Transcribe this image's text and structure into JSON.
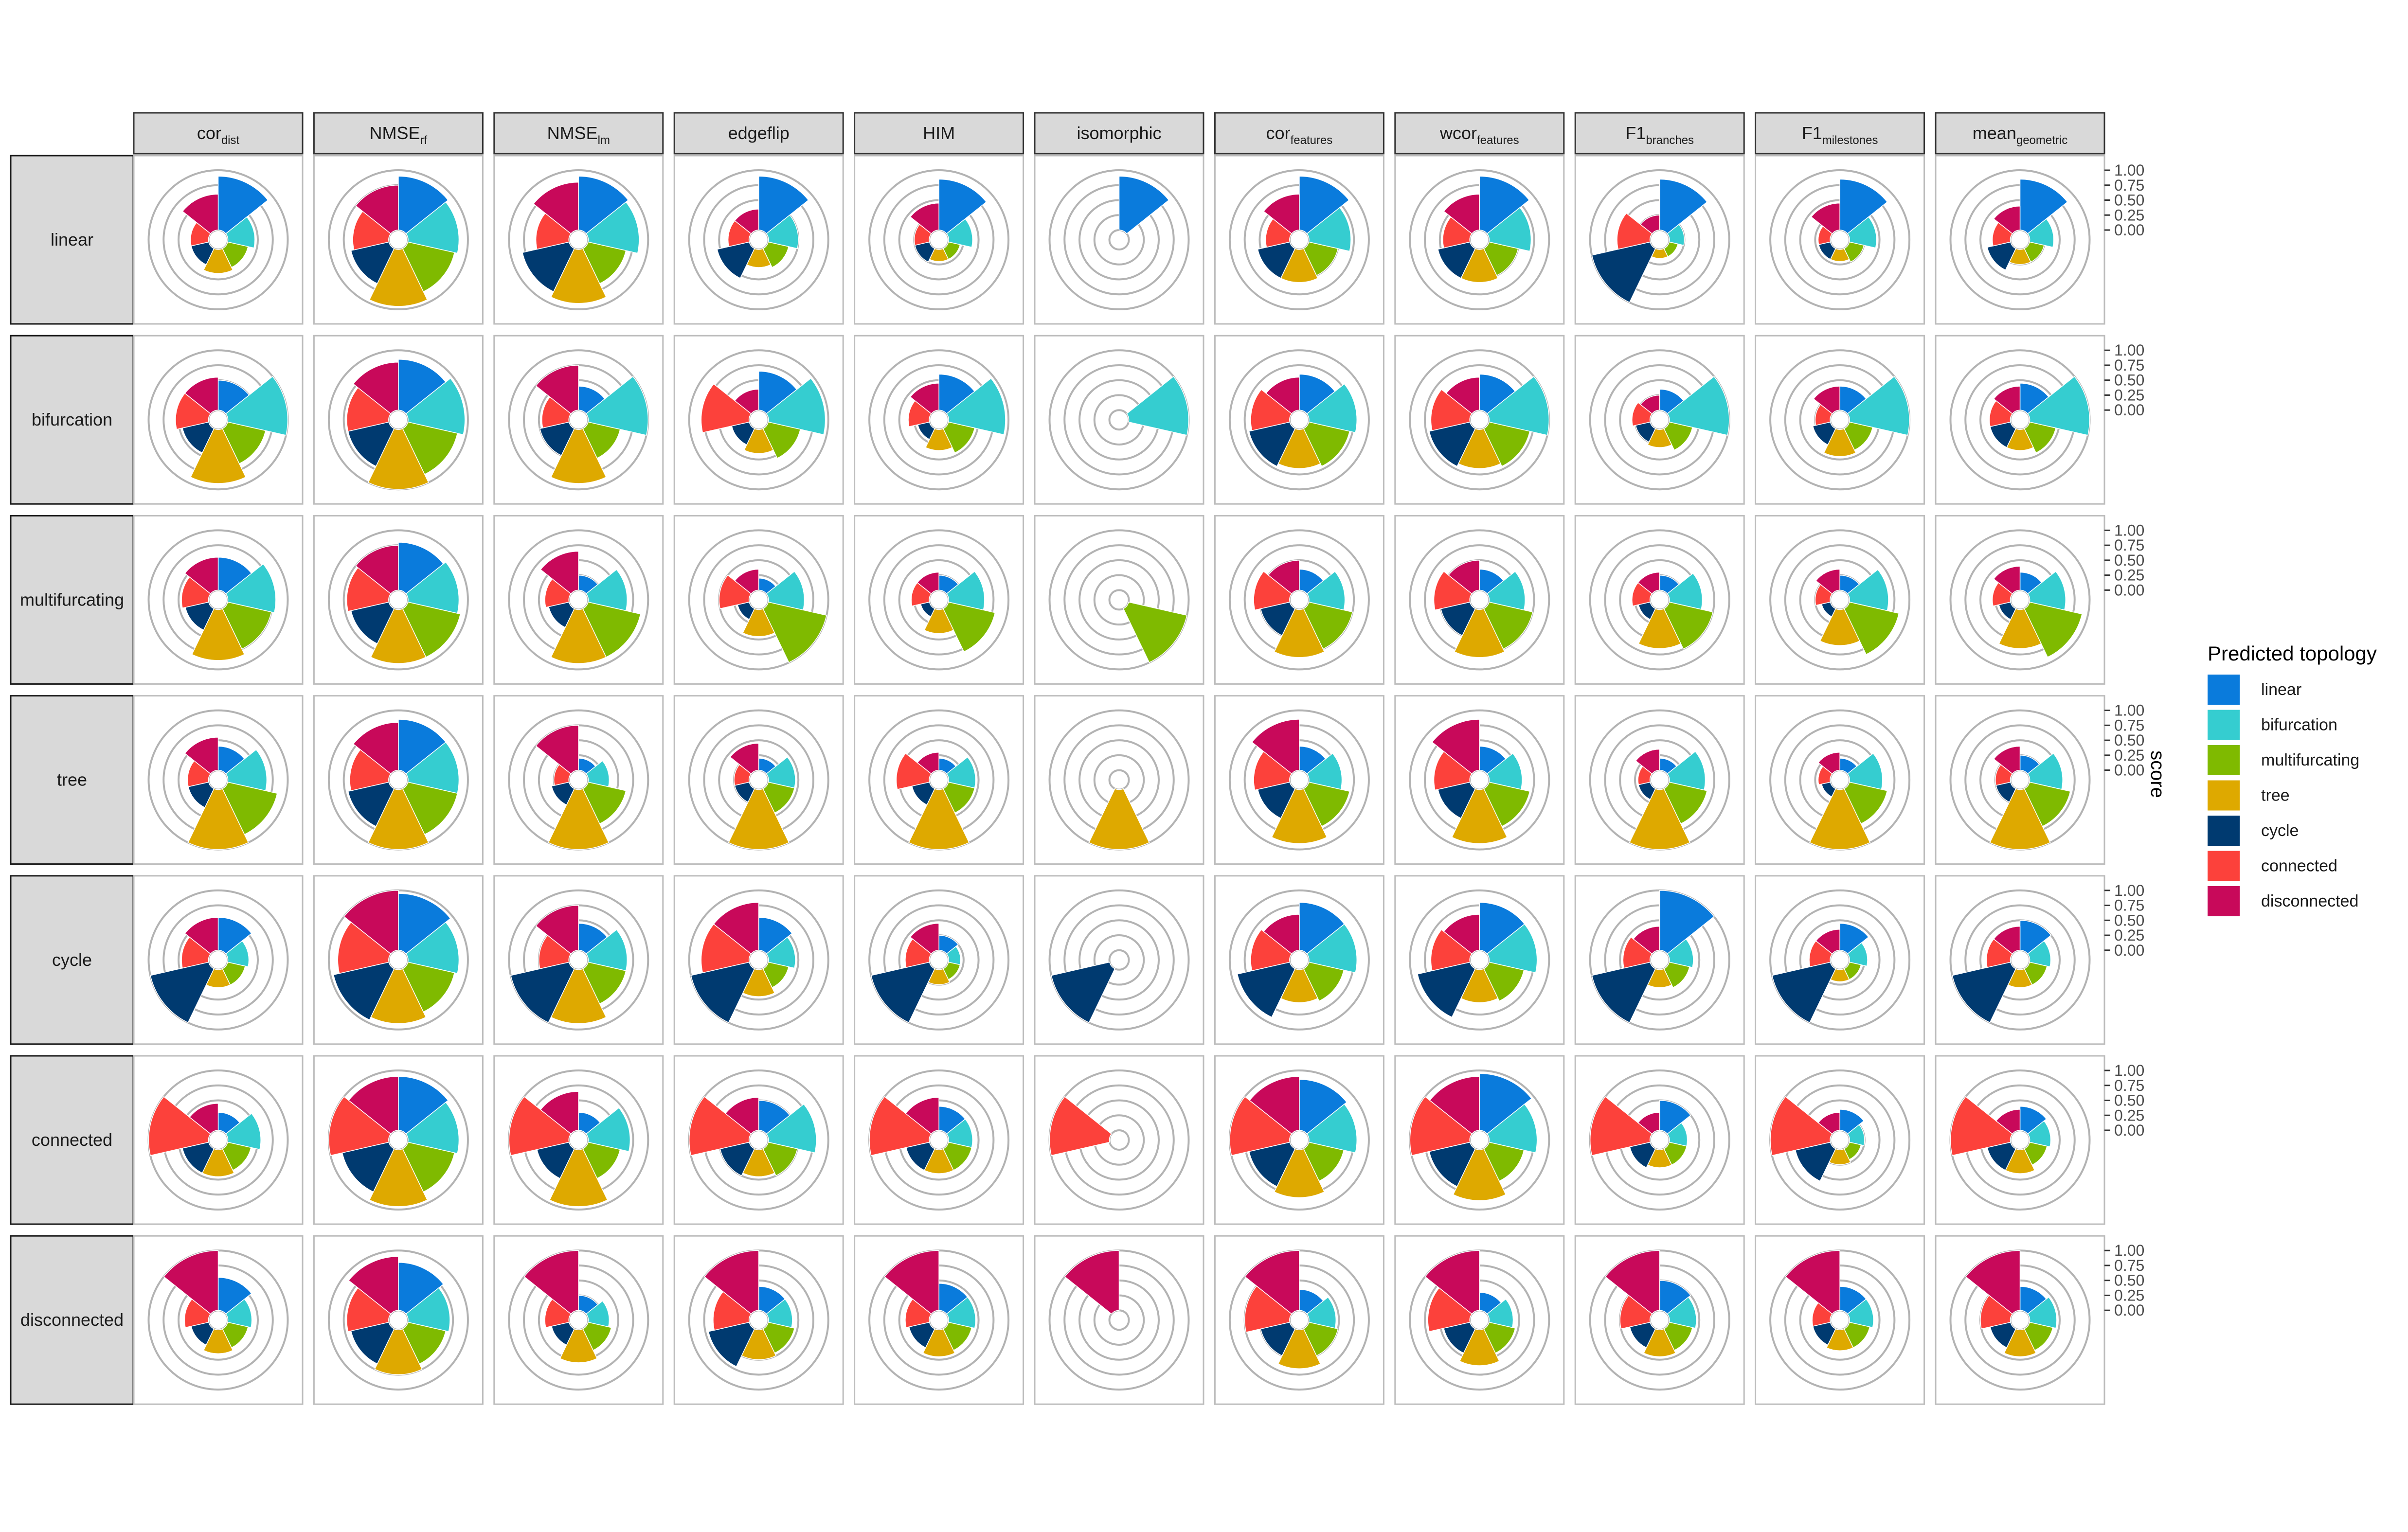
{
  "chart_data": {
    "type": "polar-bar-facet-grid",
    "topologies": [
      "linear",
      "bifurcation",
      "multifurcating",
      "tree",
      "cycle",
      "connected",
      "disconnected"
    ],
    "column_facets": [
      {
        "base": "cor",
        "sub": "dist"
      },
      {
        "base": "NMSE",
        "sub": "rf"
      },
      {
        "base": "NMSE",
        "sub": "lm"
      },
      {
        "base": "edgeflip",
        "sub": ""
      },
      {
        "base": "HIM",
        "sub": ""
      },
      {
        "base": "isomorphic",
        "sub": ""
      },
      {
        "base": "cor",
        "sub": "features"
      },
      {
        "base": "wcor",
        "sub": "features"
      },
      {
        "base": "F1",
        "sub": "branches"
      },
      {
        "base": "F1",
        "sub": "milestones"
      },
      {
        "base": "mean",
        "sub": "geometric"
      }
    ],
    "y_axis": {
      "label": "score",
      "ylim": [
        0,
        1
      ],
      "ticks": [
        "1.00",
        "0.75",
        "0.50",
        "0.25",
        "0.00"
      ]
    },
    "legend": {
      "title": "Predicted topology",
      "position": "right",
      "items": [
        {
          "label": "linear",
          "color": "#0a7bdc"
        },
        {
          "label": "bifurcation",
          "color": "#35cdd0"
        },
        {
          "label": "multifurcating",
          "color": "#7fba00"
        },
        {
          "label": "tree",
          "color": "#dea900"
        },
        {
          "label": "cycle",
          "color": "#003a70"
        },
        {
          "label": "connected",
          "color": "#fc413b"
        },
        {
          "label": "disconnected",
          "color": "#c8095a"
        }
      ]
    },
    "series_order": [
      "linear",
      "bifurcation",
      "multifurcating",
      "tree",
      "cycle",
      "connected",
      "disconnected"
    ],
    "values": {
      "linear": [
        [
          0.9,
          0.45,
          0.35,
          0.4,
          0.3,
          0.3,
          0.6
        ],
        [
          0.9,
          0.85,
          0.8,
          0.95,
          0.65,
          0.6,
          0.75
        ],
        [
          0.9,
          0.85,
          0.65,
          0.9,
          0.8,
          0.55,
          0.8
        ],
        [
          0.9,
          0.5,
          0.35,
          0.3,
          0.55,
          0.35,
          0.35
        ],
        [
          0.85,
          0.4,
          0.2,
          0.2,
          0.25,
          0.25,
          0.45
        ],
        [
          0.9,
          0.0,
          0.0,
          0.0,
          0.0,
          0.0,
          0.0
        ],
        [
          0.9,
          0.7,
          0.5,
          0.55,
          0.55,
          0.4,
          0.6
        ],
        [
          0.9,
          0.7,
          0.5,
          0.55,
          0.55,
          0.45,
          0.6
        ],
        [
          0.85,
          0.25,
          0.15,
          0.15,
          1.0,
          0.55,
          0.25
        ],
        [
          0.85,
          0.45,
          0.25,
          0.2,
          0.2,
          0.2,
          0.45
        ],
        [
          0.85,
          0.4,
          0.25,
          0.25,
          0.4,
          0.3,
          0.4
        ]
      ],
      "bifurcation": [
        [
          0.5,
          1.0,
          0.65,
          0.9,
          0.45,
          0.55,
          0.55
        ],
        [
          0.85,
          0.95,
          0.85,
          1.0,
          0.7,
          0.7,
          0.8
        ],
        [
          0.4,
          1.0,
          0.55,
          0.9,
          0.5,
          0.45,
          0.75
        ],
        [
          0.65,
          0.95,
          0.55,
          0.4,
          0.3,
          0.8,
          0.35
        ],
        [
          0.6,
          0.95,
          0.45,
          0.35,
          0.2,
          0.35,
          0.45
        ],
        [
          0.0,
          1.0,
          0.0,
          0.0,
          0.0,
          0.0,
          0.0
        ],
        [
          0.6,
          0.8,
          0.7,
          0.65,
          0.7,
          0.65,
          0.55
        ],
        [
          0.6,
          1.0,
          0.7,
          0.65,
          0.7,
          0.65,
          0.55
        ],
        [
          0.35,
          1.0,
          0.4,
          0.3,
          0.25,
          0.3,
          0.25
        ],
        [
          0.4,
          1.0,
          0.4,
          0.45,
          0.3,
          0.25,
          0.4
        ],
        [
          0.45,
          1.0,
          0.45,
          0.35,
          0.35,
          0.35,
          0.4
        ]
      ],
      "multifurcating": [
        [
          0.55,
          0.8,
          0.75,
          0.85,
          0.4,
          0.45,
          0.55
        ],
        [
          0.8,
          0.85,
          0.9,
          0.9,
          0.65,
          0.7,
          0.75
        ],
        [
          0.25,
          0.65,
          0.9,
          0.9,
          0.35,
          0.4,
          0.65
        ],
        [
          0.2,
          0.6,
          1.0,
          0.45,
          0.2,
          0.5,
          0.35
        ],
        [
          0.25,
          0.6,
          0.8,
          0.4,
          0.15,
          0.3,
          0.3
        ],
        [
          0.0,
          0.0,
          1.0,
          0.0,
          0.0,
          0.0,
          0.0
        ],
        [
          0.35,
          0.6,
          0.75,
          0.8,
          0.5,
          0.6,
          0.5
        ],
        [
          0.35,
          0.6,
          0.75,
          0.8,
          0.5,
          0.6,
          0.5
        ],
        [
          0.25,
          0.55,
          0.75,
          0.65,
          0.2,
          0.3,
          0.3
        ],
        [
          0.25,
          0.65,
          0.85,
          0.6,
          0.15,
          0.25,
          0.35
        ],
        [
          0.3,
          0.6,
          0.9,
          0.65,
          0.2,
          0.3,
          0.4
        ]
      ],
      "tree": [
        [
          0.4,
          0.65,
          0.85,
          1.0,
          0.35,
          0.35,
          0.55
        ],
        [
          0.85,
          0.85,
          0.85,
          1.0,
          0.7,
          0.65,
          0.8
        ],
        [
          0.2,
          0.35,
          0.65,
          1.0,
          0.3,
          0.25,
          0.75
        ],
        [
          0.2,
          0.45,
          0.45,
          1.0,
          0.25,
          0.25,
          0.45
        ],
        [
          0.2,
          0.45,
          0.45,
          1.0,
          0.3,
          0.55,
          0.3
        ],
        [
          0.0,
          0.0,
          0.0,
          1.0,
          0.0,
          0.0,
          0.0
        ],
        [
          0.4,
          0.55,
          0.7,
          0.9,
          0.55,
          0.6,
          0.85
        ],
        [
          0.4,
          0.55,
          0.7,
          0.9,
          0.55,
          0.6,
          0.85
        ],
        [
          0.2,
          0.6,
          0.65,
          1.0,
          0.2,
          0.2,
          0.35
        ],
        [
          0.2,
          0.55,
          0.65,
          1.0,
          0.15,
          0.2,
          0.3
        ],
        [
          0.25,
          0.55,
          0.7,
          1.0,
          0.25,
          0.25,
          0.4
        ]
      ],
      "cycle": [
        [
          0.55,
          0.35,
          0.3,
          0.3,
          1.0,
          0.45,
          0.55
        ],
        [
          0.95,
          0.85,
          0.8,
          0.9,
          0.95,
          0.85,
          1.0
        ],
        [
          0.45,
          0.65,
          0.65,
          0.9,
          1.0,
          0.5,
          0.75
        ],
        [
          0.55,
          0.45,
          0.35,
          0.45,
          1.0,
          0.8,
          0.8
        ],
        [
          0.25,
          0.2,
          0.2,
          0.25,
          1.0,
          0.4,
          0.45
        ],
        [
          0.0,
          0.0,
          0.0,
          0.0,
          1.0,
          0.0,
          0.0
        ],
        [
          0.8,
          0.8,
          0.6,
          0.55,
          0.9,
          0.65,
          0.6
        ],
        [
          0.8,
          0.8,
          0.6,
          0.55,
          0.9,
          0.65,
          0.6
        ],
        [
          1.0,
          0.4,
          0.35,
          0.3,
          1.0,
          0.45,
          0.4
        ],
        [
          0.45,
          0.3,
          0.2,
          0.2,
          1.0,
          0.35,
          0.35
        ],
        [
          0.5,
          0.35,
          0.3,
          0.3,
          1.0,
          0.4,
          0.4
        ]
      ],
      "connected": [
        [
          0.3,
          0.55,
          0.4,
          0.45,
          0.45,
          1.0,
          0.45
        ],
        [
          0.9,
          0.85,
          0.8,
          0.95,
          0.8,
          1.0,
          0.9
        ],
        [
          0.3,
          0.7,
          0.55,
          0.95,
          0.55,
          1.0,
          0.65
        ],
        [
          0.5,
          0.8,
          0.5,
          0.45,
          0.5,
          1.0,
          0.55
        ],
        [
          0.4,
          0.4,
          0.4,
          0.4,
          0.4,
          1.0,
          0.55
        ],
        [
          0.0,
          0.0,
          0.0,
          0.0,
          0.0,
          1.0,
          0.0
        ],
        [
          0.85,
          0.8,
          0.6,
          0.8,
          0.7,
          1.0,
          0.9
        ],
        [
          0.95,
          0.8,
          0.6,
          0.85,
          0.7,
          1.0,
          0.9
        ],
        [
          0.5,
          0.3,
          0.3,
          0.3,
          0.35,
          1.0,
          0.3
        ],
        [
          0.35,
          0.25,
          0.2,
          0.25,
          0.6,
          1.0,
          0.3
        ],
        [
          0.4,
          0.35,
          0.3,
          0.4,
          0.4,
          1.0,
          0.35
        ]
      ],
      "disconnected": [
        [
          0.55,
          0.4,
          0.35,
          0.4,
          0.3,
          0.4,
          1.0
        ],
        [
          0.8,
          0.7,
          0.65,
          0.75,
          0.65,
          0.7,
          0.9
        ],
        [
          0.25,
          0.35,
          0.4,
          0.55,
          0.3,
          0.4,
          1.0
        ],
        [
          0.4,
          0.4,
          0.45,
          0.5,
          0.7,
          0.6,
          1.0
        ],
        [
          0.45,
          0.45,
          0.4,
          0.45,
          0.35,
          0.4,
          1.0
        ],
        [
          0.0,
          0.0,
          0.0,
          0.0,
          0.0,
          0.0,
          1.0
        ],
        [
          0.35,
          0.45,
          0.5,
          0.65,
          0.5,
          0.75,
          1.0
        ],
        [
          0.3,
          0.4,
          0.45,
          0.6,
          0.45,
          0.7,
          1.0
        ],
        [
          0.5,
          0.45,
          0.4,
          0.45,
          0.35,
          0.5,
          1.0
        ],
        [
          0.4,
          0.4,
          0.35,
          0.35,
          0.3,
          0.3,
          1.0
        ],
        [
          0.4,
          0.45,
          0.4,
          0.45,
          0.35,
          0.5,
          1.0
        ]
      ]
    }
  }
}
